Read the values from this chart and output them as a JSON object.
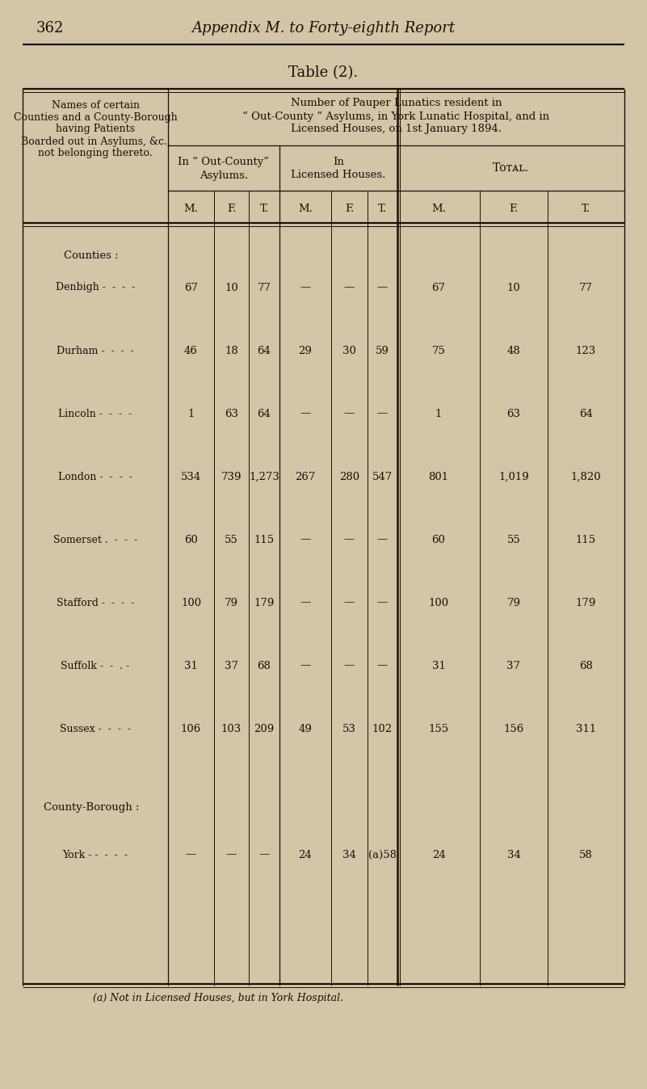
{
  "page_number": "362",
  "page_header": "Appendix M. to Forty-eighth Report",
  "table_title": "Table (2).",
  "bg_color": "#d4c4a8",
  "text_color": "#1a0f05",
  "line_color": "#1a0f05",
  "rows": [
    {
      "name": "Denbigh",
      "sep": " -  -  -  -",
      "oc_m": "67",
      "oc_f": "10",
      "oc_t": "77",
      "lh_m": "—",
      "lh_f": "—",
      "lh_t": "—",
      "to_m": "67",
      "to_f": "10",
      "to_t": "77"
    },
    {
      "name": "Durham",
      "sep": " -  -  -  -",
      "oc_m": "46",
      "oc_f": "18",
      "oc_t": "64",
      "lh_m": "29",
      "lh_f": "30",
      "lh_t": "59",
      "to_m": "75",
      "to_f": "48",
      "to_t": "123"
    },
    {
      "name": "Lincoln",
      "sep": " -  -  -  -",
      "oc_m": "1",
      "oc_f": "63",
      "oc_t": "64",
      "lh_m": "—",
      "lh_f": "—",
      "lh_t": "—",
      "to_m": "1",
      "to_f": "63",
      "to_t": "64"
    },
    {
      "name": "London",
      "sep": " -  -  -  -",
      "oc_m": "534",
      "oc_f": "739",
      "oc_t": "1,273",
      "lh_m": "267",
      "lh_f": "280",
      "lh_t": "547",
      "to_m": "801",
      "to_f": "1,019",
      "to_t": "1,820"
    },
    {
      "name": "Somerset",
      "sep": " .  -  -  -",
      "oc_m": "60",
      "oc_f": "55",
      "oc_t": "115",
      "lh_m": "—",
      "lh_f": "—",
      "lh_t": "—",
      "to_m": "60",
      "to_f": "55",
      "to_t": "115"
    },
    {
      "name": "Stafford",
      "sep": " -  -  -  -",
      "oc_m": "100",
      "oc_f": "79",
      "oc_t": "179",
      "lh_m": "—",
      "lh_f": "—",
      "lh_t": "—",
      "to_m": "100",
      "to_f": "79",
      "to_t": "179"
    },
    {
      "name": "Suffolk",
      "sep": " -  -  . -",
      "oc_m": "31",
      "oc_f": "37",
      "oc_t": "68",
      "lh_m": "—",
      "lh_f": "—",
      "lh_t": "—",
      "to_m": "31",
      "to_f": "37",
      "to_t": "68"
    },
    {
      "name": "Sussex",
      "sep": " -  -  -  -",
      "oc_m": "106",
      "oc_f": "103",
      "oc_t": "209",
      "lh_m": "49",
      "lh_f": "53",
      "lh_t": "102",
      "to_m": "155",
      "to_f": "156",
      "to_t": "311"
    }
  ],
  "cb_row": {
    "name": "York -",
    "sep": " -  -  -  -",
    "oc_m": "—",
    "oc_f": "—",
    "oc_t": "—",
    "lh_m": "24",
    "lh_f": "34",
    "lh_t": "(a)58",
    "to_m": "24",
    "to_f": "34",
    "to_t": "58"
  },
  "footnote": "(a) Not in Licensed Houses, but in York Hospital."
}
